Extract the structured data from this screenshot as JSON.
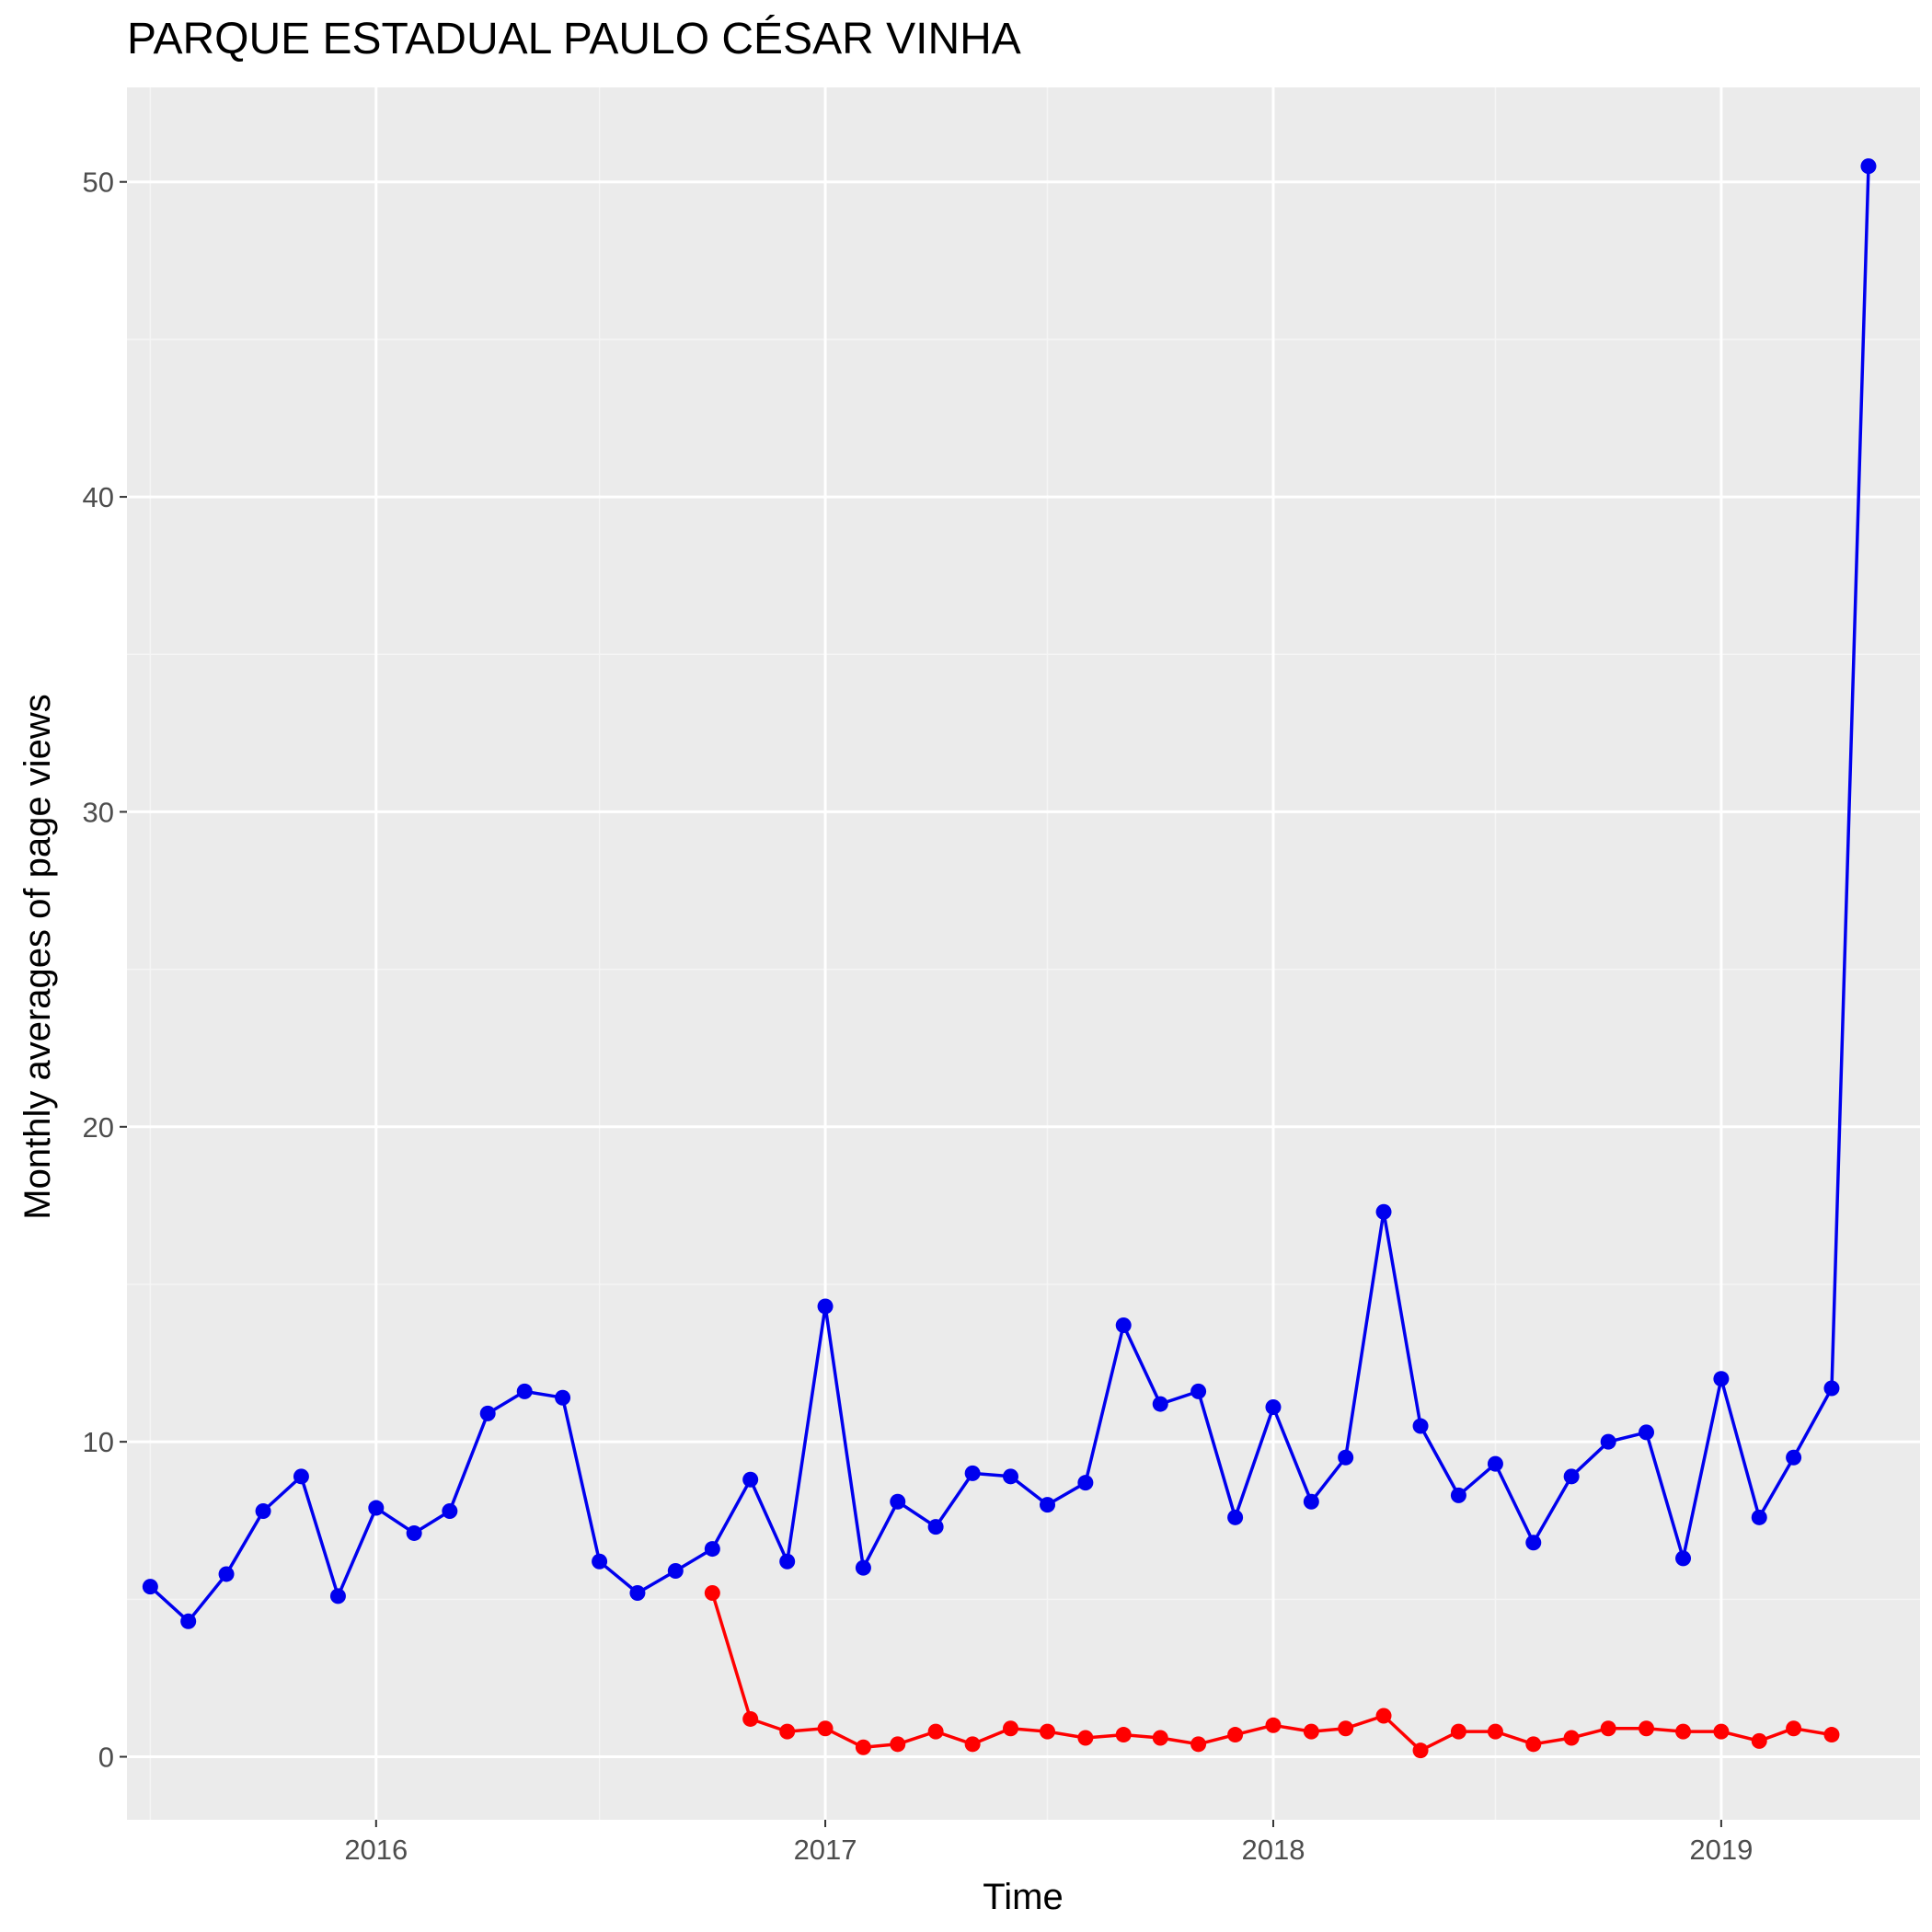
{
  "chart_data": {
    "type": "line",
    "title": "PARQUE ESTADUAL PAULO CÉSAR VINHA",
    "xlabel": "Time",
    "ylabel": "Monthly averages of page views",
    "xlim": [
      "2015-06-12",
      "2019-06-12"
    ],
    "ylim": [
      -2.0,
      53.0
    ],
    "x_ticks": [
      "2016",
      "2017",
      "2018",
      "2019"
    ],
    "y_ticks": [
      0,
      10,
      20,
      30,
      40,
      50
    ],
    "grid": true,
    "legend": "none",
    "series": [
      {
        "color": "#0000ee",
        "points": [
          [
            "2015-07-01",
            5.4
          ],
          [
            "2015-08-01",
            4.3
          ],
          [
            "2015-09-01",
            5.8
          ],
          [
            "2015-10-01",
            7.8
          ],
          [
            "2015-11-01",
            8.9
          ],
          [
            "2015-12-01",
            5.1
          ],
          [
            "2016-01-01",
            7.9
          ],
          [
            "2016-02-01",
            7.1
          ],
          [
            "2016-03-01",
            7.8
          ],
          [
            "2016-04-01",
            10.9
          ],
          [
            "2016-05-01",
            11.6
          ],
          [
            "2016-06-01",
            11.4
          ],
          [
            "2016-07-01",
            6.2
          ],
          [
            "2016-08-01",
            5.2
          ],
          [
            "2016-09-01",
            5.9
          ],
          [
            "2016-10-01",
            6.6
          ],
          [
            "2016-11-01",
            8.8
          ],
          [
            "2016-12-01",
            6.2
          ],
          [
            "2017-01-01",
            14.3
          ],
          [
            "2017-02-01",
            6.0
          ],
          [
            "2017-03-01",
            8.1
          ],
          [
            "2017-04-01",
            7.3
          ],
          [
            "2017-05-01",
            9.0
          ],
          [
            "2017-06-01",
            8.9
          ],
          [
            "2017-07-01",
            8.0
          ],
          [
            "2017-08-01",
            8.7
          ],
          [
            "2017-09-01",
            13.7
          ],
          [
            "2017-10-01",
            11.2
          ],
          [
            "2017-11-01",
            11.6
          ],
          [
            "2017-12-01",
            7.6
          ],
          [
            "2018-01-01",
            11.1
          ],
          [
            "2018-02-01",
            8.1
          ],
          [
            "2018-03-01",
            9.5
          ],
          [
            "2018-04-01",
            17.3
          ],
          [
            "2018-05-01",
            10.5
          ],
          [
            "2018-06-01",
            8.3
          ],
          [
            "2018-07-01",
            9.3
          ],
          [
            "2018-08-01",
            6.8
          ],
          [
            "2018-09-01",
            8.9
          ],
          [
            "2018-10-01",
            10.0
          ],
          [
            "2018-11-01",
            10.3
          ],
          [
            "2018-12-01",
            6.3
          ],
          [
            "2019-01-01",
            12.0
          ],
          [
            "2019-02-01",
            7.6
          ],
          [
            "2019-03-01",
            9.5
          ],
          [
            "2019-04-01",
            11.7
          ],
          [
            "2019-05-01",
            50.5
          ]
        ]
      },
      {
        "color": "#ff0000",
        "points": [
          [
            "2016-10-01",
            5.2
          ],
          [
            "2016-11-01",
            1.2
          ],
          [
            "2016-12-01",
            0.8
          ],
          [
            "2017-01-01",
            0.9
          ],
          [
            "2017-02-01",
            0.3
          ],
          [
            "2017-03-01",
            0.4
          ],
          [
            "2017-04-01",
            0.8
          ],
          [
            "2017-05-01",
            0.4
          ],
          [
            "2017-06-01",
            0.9
          ],
          [
            "2017-07-01",
            0.8
          ],
          [
            "2017-08-01",
            0.6
          ],
          [
            "2017-09-01",
            0.7
          ],
          [
            "2017-10-01",
            0.6
          ],
          [
            "2017-11-01",
            0.4
          ],
          [
            "2017-12-01",
            0.7
          ],
          [
            "2018-01-01",
            1.0
          ],
          [
            "2018-02-01",
            0.8
          ],
          [
            "2018-03-01",
            0.9
          ],
          [
            "2018-04-01",
            1.3
          ],
          [
            "2018-05-01",
            0.2
          ],
          [
            "2018-06-01",
            0.8
          ],
          [
            "2018-07-01",
            0.8
          ],
          [
            "2018-08-01",
            0.4
          ],
          [
            "2018-09-01",
            0.6
          ],
          [
            "2018-10-01",
            0.9
          ],
          [
            "2018-11-01",
            0.9
          ],
          [
            "2018-12-01",
            0.8
          ],
          [
            "2019-01-01",
            0.8
          ],
          [
            "2019-02-01",
            0.5
          ],
          [
            "2019-03-01",
            0.9
          ],
          [
            "2019-04-01",
            0.7
          ]
        ]
      }
    ],
    "colors": {
      "panel_background": "#ebebeb",
      "grid_major": "#ffffff",
      "grid_minor": "#f5f5f5"
    }
  }
}
